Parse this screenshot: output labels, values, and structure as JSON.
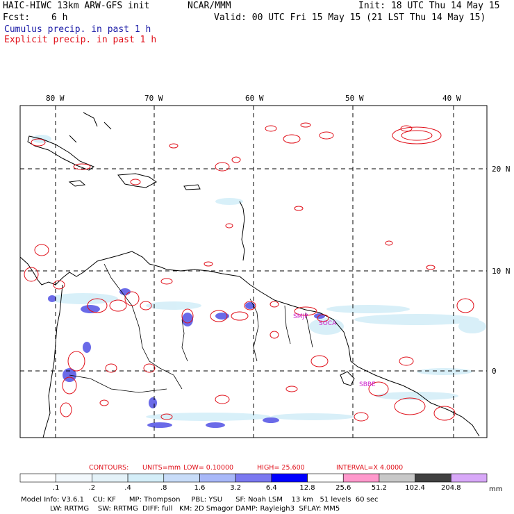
{
  "header": {
    "model": "HAIC-HIWC 13km ARW-GFS init",
    "center": "NCAR/MMM",
    "init": "Init: 18 UTC Thu 14 May 15",
    "fcst_label": "Fcst:",
    "fcst_value": "6 h",
    "valid": "Valid: 00 UTC Fri 15 May 15 (21 LST Thu 14 May 15)",
    "cumulus": "Cumulus precip. in past 1 h",
    "explicit": "Explicit precip. in past 1 h"
  },
  "map": {
    "lon_labels": [
      "80 W",
      "70 W",
      "60 W",
      "50 W",
      "40 W"
    ],
    "lat_labels": [
      "20 N",
      "10 N",
      "0"
    ],
    "stations": [
      "SMJP",
      "SOCA",
      "SBBE"
    ]
  },
  "contours": {
    "label": "CONTOURS:",
    "units": "UNITS=mm",
    "low": "LOW=  0.10000",
    "high": "HIGH=  25.600",
    "interval": "INTERVAL=X  4.0000"
  },
  "colorbar": {
    "ticks": [
      ".1",
      ".2",
      ".4",
      ".8",
      "1.6",
      "3.2",
      "6.4",
      "12.8",
      "25.6",
      "51.2",
      "102.4",
      "204.8"
    ],
    "units": "mm",
    "colors": [
      "#ffffff",
      "#f2f8fc",
      "#e4f2f8",
      "#d4eef8",
      "#c8dcf8",
      "#a8b8f8",
      "#7a78f0",
      "#0000ff",
      "#ffffff",
      "#ff99cc",
      "#c8c8c8",
      "#404040",
      "#d8a8f8"
    ]
  },
  "footer": {
    "line1": "Model Info: V3.6.1    CU: KF      MP: Thompson     PBL: YSU      SF: Noah LSM    13 km   51 levels  60 sec",
    "line2": "LW: RRTMG    SW: RRTMG  DIFF: full   KM: 2D Smagor DAMP: Rayleigh3  SFLAY: MM5"
  }
}
